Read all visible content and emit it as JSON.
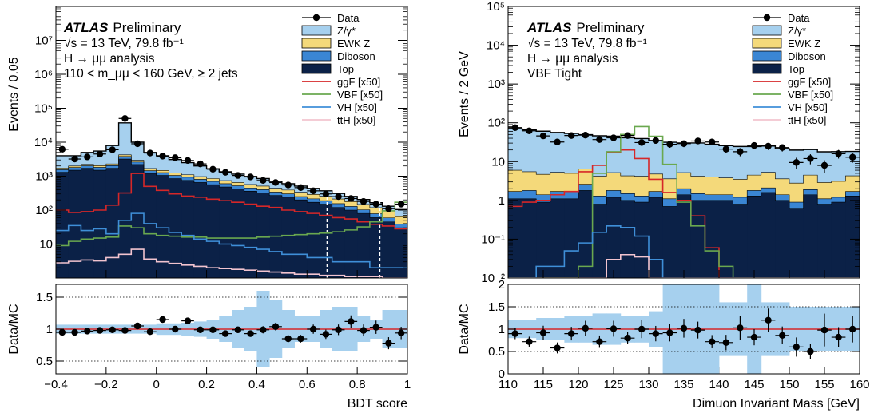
{
  "colors": {
    "data": "#000000",
    "zgamma": "#a6d0ee",
    "ewkz": "#f4d97a",
    "diboson": "#3a86d4",
    "top": "#0b2147",
    "ggF": "#d62728",
    "VBF": "#6aa84f",
    "VH": "#3f8fd8",
    "ttH": "#f2c4cf",
    "ratio_band": "#a6d0ee",
    "ratio_line": "#d62728"
  },
  "chart_data": [
    {
      "type": "area",
      "title": "",
      "atlas_label": "ATLAS",
      "atlas_suffix": "Preliminary",
      "info_lines": [
        "√s = 13 TeV, 79.8 fb⁻¹",
        "H → μμ analysis",
        "110 < m_μμ < 160 GeV, ≥ 2 jets"
      ],
      "ylabel": "Events / 0.05",
      "xlabel": "BDT score",
      "ratio_ylabel": "Data/MC",
      "log_y": true,
      "ylim": [
        1,
        100000000
      ],
      "xlim": [
        -0.4,
        1.0
      ],
      "x_ticks": [
        -0.4,
        -0.2,
        0,
        0.2,
        0.4,
        0.6,
        0.8,
        1
      ],
      "x_tick_labels": [
        "−0.4",
        "−0.2",
        "0",
        "0.2",
        "0.4",
        "0.6",
        "0.8",
        "1"
      ],
      "y_ticks": [
        10,
        100,
        1000,
        10000,
        100000,
        1000000,
        10000000
      ],
      "y_tick_labels": [
        "10",
        "10²",
        "10³",
        "10⁴",
        "10⁵",
        "10⁶",
        "10⁷"
      ],
      "category_boundaries": [
        0.68,
        0.89
      ],
      "bin_edges": [
        -0.4,
        -0.35,
        -0.3,
        -0.25,
        -0.2,
        -0.15,
        -0.1,
        -0.05,
        0,
        0.05,
        0.1,
        0.15,
        0.2,
        0.25,
        0.3,
        0.35,
        0.4,
        0.45,
        0.5,
        0.55,
        0.6,
        0.65,
        0.7,
        0.75,
        0.8,
        0.85,
        0.9,
        0.95,
        1.0
      ],
      "stack": [
        {
          "name": "Top",
          "color_key": "top",
          "values": [
            1300,
            1500,
            1700,
            1500,
            1700,
            3200,
            2200,
            1200,
            1050,
            850,
            750,
            650,
            560,
            480,
            420,
            360,
            320,
            270,
            240,
            200,
            170,
            150,
            120,
            100,
            80,
            60,
            45,
            30
          ]
        },
        {
          "name": "Diboson",
          "color_key": "diboson",
          "values": [
            250,
            300,
            320,
            320,
            340,
            600,
            400,
            250,
            220,
            200,
            180,
            160,
            140,
            120,
            100,
            90,
            80,
            70,
            60,
            50,
            45,
            40,
            35,
            28,
            22,
            18,
            14,
            9
          ]
        },
        {
          "name": "EWK Z",
          "color_key": "ewkz",
          "values": [
            180,
            190,
            220,
            220,
            260,
            450,
            350,
            230,
            210,
            190,
            170,
            160,
            150,
            140,
            130,
            120,
            110,
            100,
            90,
            85,
            75,
            65,
            58,
            50,
            45,
            40,
            35,
            25
          ]
        },
        {
          "name": "Z/γ*",
          "color_key": "zgamma",
          "values": [
            2270,
            2010,
            2760,
            3460,
            5700,
            32750,
            7050,
            3320,
            2520,
            1860,
            1400,
            1030,
            800,
            610,
            500,
            410,
            340,
            260,
            210,
            175,
            145,
            115,
            97,
            75,
            58,
            47,
            36,
            40
          ]
        }
      ],
      "stack_totals": [
        4000,
        4000,
        5000,
        5500,
        8000,
        37000,
        10000,
        5000,
        4000,
        3100,
        2500,
        2000,
        1650,
        1350,
        1150,
        980,
        850,
        700,
        600,
        510,
        435,
        370,
        310,
        253,
        205,
        165,
        130,
        104
      ],
      "data_points": [
        6200,
        3200,
        3700,
        4500,
        6000,
        50000,
        9000,
        4800,
        3900,
        3500,
        2900,
        2300,
        1600,
        1300,
        1050,
        950,
        750,
        650,
        550,
        460,
        370,
        300,
        250,
        220,
        180,
        150,
        110,
        150
      ],
      "signals": [
        {
          "name": "ggF [x50]",
          "color_key": "ggF",
          "values": [
            100,
            85,
            90,
            100,
            140,
            320,
            1200,
            500,
            380,
            300,
            260,
            240,
            210,
            190,
            170,
            150,
            130,
            120,
            100,
            90,
            80,
            70,
            60,
            55,
            45,
            38,
            34,
            28
          ]
        },
        {
          "name": "VBF [x50]",
          "color_key": "VBF",
          "values": [
            9,
            12,
            14,
            15,
            16,
            34,
            30,
            20,
            18,
            17,
            16,
            16,
            15,
            15,
            15,
            15,
            16,
            17,
            18,
            19,
            20,
            21,
            23,
            26,
            32,
            45,
            95,
            170
          ]
        },
        {
          "name": "VH [x50]",
          "color_key": "VH",
          "values": [
            25,
            35,
            25,
            28,
            20,
            50,
            80,
            40,
            30,
            22,
            18,
            14,
            12,
            10,
            9,
            8,
            7,
            6,
            5,
            5,
            4,
            4,
            3,
            3,
            3,
            2,
            2,
            2
          ]
        },
        {
          "name": "ttH [x50]",
          "color_key": "ttH",
          "values": [
            2.8,
            3.1,
            3.4,
            3.2,
            4,
            5,
            7,
            3.6,
            3,
            2.7,
            2.4,
            2.2,
            2,
            1.9,
            1.8,
            1.7,
            1.6,
            1.5,
            1.4,
            1.3,
            1.3,
            1.2,
            1.2,
            1.1,
            1.1,
            1.1,
            1,
            1
          ]
        }
      ],
      "ratio": {
        "ylim": [
          0.3,
          1.7
        ],
        "y_ticks": [
          0.5,
          1,
          1.5
        ],
        "y_tick_labels": [
          "0.5",
          "1",
          "1.5"
        ],
        "points": [
          0.95,
          0.95,
          0.97,
          0.98,
          0.99,
          0.98,
          1.05,
          0.96,
          1.15,
          1.0,
          1.13,
          0.99,
          0.99,
          0.93,
          0.99,
          0.93,
          0.99,
          1.04,
          0.85,
          0.85,
          1.0,
          0.92,
          0.99,
          1.12,
          0.98,
          1.03,
          0.78,
          0.94
        ],
        "band_half_widths": [
          0.07,
          0.07,
          0.07,
          0.07,
          0.07,
          0.07,
          0.07,
          0.07,
          0.09,
          0.09,
          0.1,
          0.12,
          0.15,
          0.2,
          0.3,
          0.35,
          0.6,
          0.45,
          0.3,
          0.2,
          0.2,
          0.3,
          0.35,
          0.35,
          0.2,
          0.15,
          0.3,
          0.3
        ]
      }
    },
    {
      "type": "area",
      "title": "",
      "atlas_label": "ATLAS",
      "atlas_suffix": "Preliminary",
      "info_lines": [
        "√s = 13 TeV, 79.8 fb⁻¹",
        "H → μμ analysis",
        "VBF Tight"
      ],
      "ylabel": "Events / 2 GeV",
      "xlabel": "Dimuon Invariant Mass [GeV]",
      "ratio_ylabel": "Data/MC",
      "log_y": true,
      "ylim": [
        0.01,
        100000
      ],
      "xlim": [
        110,
        160
      ],
      "x_ticks": [
        110,
        115,
        120,
        125,
        130,
        135,
        140,
        145,
        150,
        155,
        160
      ],
      "x_tick_labels": [
        "110",
        "115",
        "120",
        "125",
        "130",
        "135",
        "140",
        "145",
        "150",
        "155",
        "160"
      ],
      "y_ticks": [
        0.01,
        0.1,
        1,
        10,
        100,
        1000,
        10000,
        100000
      ],
      "y_tick_labels": [
        "10⁻²",
        "10⁻¹",
        "1",
        "10",
        "10²",
        "10³",
        "10⁴",
        "10⁵"
      ],
      "category_boundaries": [],
      "bin_edges": [
        110,
        112,
        114,
        116,
        118,
        120,
        122,
        124,
        126,
        128,
        130,
        132,
        134,
        136,
        138,
        140,
        142,
        144,
        146,
        148,
        150,
        152,
        154,
        156,
        158,
        160
      ],
      "stack": [
        {
          "name": "Top",
          "color_key": "top",
          "values": [
            1.1,
            1.1,
            0.9,
            1.1,
            1.1,
            1.8,
            0.8,
            1.2,
            1.0,
            0.9,
            1.2,
            0.7,
            1.4,
            1.0,
            1.0,
            1.0,
            0.8,
            1.3,
            1.6,
            1.0,
            0.6,
            1.4,
            0.8,
            0.9,
            1.3
          ]
        },
        {
          "name": "Diboson",
          "color_key": "diboson",
          "values": [
            0.6,
            0.7,
            0.5,
            0.6,
            0.6,
            0.8,
            0.5,
            0.6,
            0.5,
            0.4,
            0.5,
            0.4,
            0.6,
            0.5,
            0.4,
            0.4,
            0.4,
            0.5,
            0.5,
            0.4,
            0.3,
            0.5,
            0.3,
            0.3,
            0.4
          ]
        },
        {
          "name": "EWK Z",
          "color_key": "ewkz",
          "values": [
            4.3,
            3.7,
            3.3,
            3.6,
            3.3,
            3.9,
            2.9,
            3.4,
            2.8,
            2.9,
            3.1,
            2.5,
            3.2,
            2.7,
            2.6,
            2.4,
            2.3,
            2.7,
            3.2,
            2.2,
            1.9,
            2.6,
            1.8,
            1.9,
            2.6
          ]
        },
        {
          "name": "Z/γ*",
          "color_key": "zgamma",
          "values": [
            64,
            60,
            56,
            51,
            48,
            43,
            42,
            40,
            37,
            35,
            30,
            28,
            25,
            26,
            24,
            22,
            21,
            20,
            20,
            18,
            17,
            16,
            15,
            15,
            14
          ]
        }
      ],
      "stack_totals": [
        70,
        65,
        60,
        56,
        53,
        49.5,
        46,
        45,
        41,
        39,
        35,
        31.5,
        30,
        30,
        28,
        26,
        24.5,
        24.5,
        25,
        21.5,
        19,
        20.5,
        18,
        18,
        18
      ],
      "data_points": [
        75,
        62,
        46,
        32,
        47,
        48,
        37,
        41,
        47,
        31,
        35,
        28,
        29,
        34,
        32,
        21,
        18,
        26,
        25,
        23,
        9.5,
        12,
        8,
        16,
        13
      ],
      "signals": [
        {
          "name": "ggF [x50]",
          "color_key": "ggF",
          "values": [
            0.7,
            0.9,
            1,
            1.4,
            1.7,
            5.5,
            8,
            17,
            20,
            12,
            3.5,
            1.6,
            1,
            0.4,
            0.06,
            0.01,
            0.01,
            0.01,
            0.01,
            0.01,
            0.01,
            0.01,
            0.01,
            0.01,
            0.01
          ]
        },
        {
          "name": "VBF [x50]",
          "color_key": "VBF",
          "values": [
            0.01,
            0.01,
            0.01,
            0.01,
            0.01,
            0.02,
            5,
            18,
            50,
            80,
            45,
            8.5,
            0.9,
            0.22,
            0.05,
            0.02,
            0.01,
            0.01,
            0.01,
            0.01,
            0.01,
            0.01,
            0.01,
            0.01,
            0.01
          ]
        },
        {
          "name": "VH [x50]",
          "color_key": "VH",
          "values": [
            0.01,
            0.01,
            0.02,
            0.02,
            0.05,
            0.08,
            0.15,
            0.22,
            0.2,
            0.12,
            0.03,
            0.01,
            0.01,
            0.01,
            0.01,
            0.01,
            0.01,
            0.01,
            0.01,
            0.01,
            0.01,
            0.01,
            0.01,
            0.01,
            0.01
          ]
        },
        {
          "name": "ttH [x50]",
          "color_key": "ttH",
          "values": [
            0.01,
            0.01,
            0.01,
            0.01,
            0.01,
            0.01,
            0.01,
            0.03,
            0.04,
            0.035,
            0.01,
            0.01,
            0.01,
            0.01,
            0.01,
            0.01,
            0.01,
            0.01,
            0.01,
            0.01,
            0.01,
            0.01,
            0.01,
            0.01,
            0.01
          ]
        }
      ],
      "ratio": {
        "ylim": [
          0,
          2
        ],
        "y_ticks": [
          0,
          0.5,
          1,
          1.5,
          2
        ],
        "y_tick_labels": [
          "0",
          "0.5",
          "1",
          "1.5",
          "2"
        ],
        "points": [
          0.9,
          0.72,
          0.92,
          0.58,
          0.9,
          1.02,
          0.72,
          1.01,
          0.8,
          1.0,
          0.9,
          0.92,
          1.02,
          0.98,
          0.72,
          0.7,
          1.03,
          0.82,
          1.2,
          0.86,
          0.6,
          0.5,
          0.98,
          0.82,
          1.0
        ],
        "band_half_widths": [
          0.2,
          0.2,
          0.25,
          0.25,
          0.3,
          0.3,
          0.35,
          0.35,
          0.3,
          0.3,
          0.4,
          1.0,
          1.0,
          1.0,
          1.0,
          0.6,
          0.6,
          1.0,
          0.6,
          0.6,
          0.5,
          0.5,
          0.5,
          0.5,
          0.5
        ]
      }
    }
  ],
  "legend": {
    "data_label": "Data",
    "entries": [
      "Z/γ*",
      "EWK Z",
      "Diboson",
      "Top",
      "ggF [x50]",
      "VBF [x50]",
      "VH [x50]",
      "ttH [x50]"
    ]
  }
}
